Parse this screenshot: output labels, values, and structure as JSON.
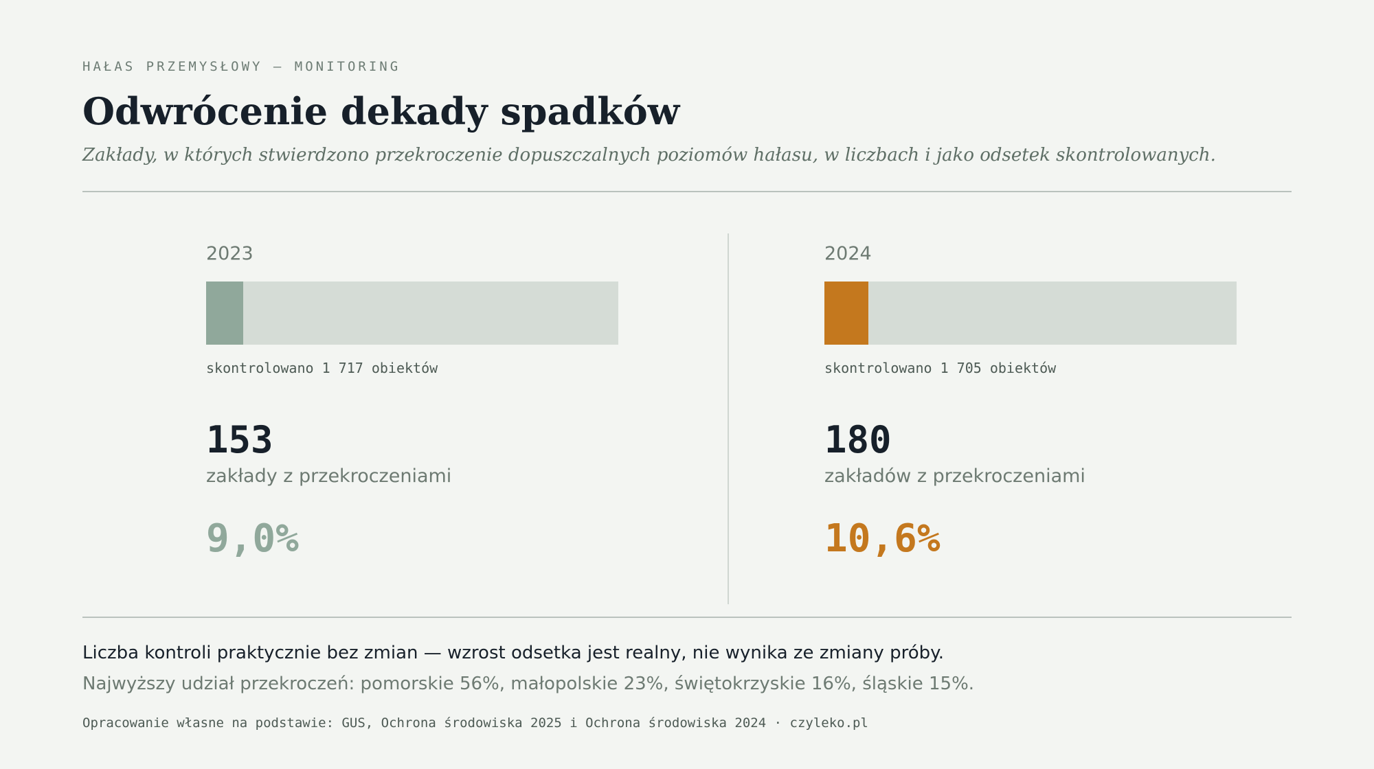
{
  "header": {
    "kicker": "HAŁAS PRZEMYSŁOWY — MONITORING",
    "title": "Odwrócenie dekady spadków",
    "subtitle": "Zakłady, w których stwierdzono przekroczenie dopuszczalnych poziomów hałasu, w liczbach i jako odsetek skontrolowanych."
  },
  "chart_data": {
    "type": "bar",
    "categories": [
      "2023",
      "2024"
    ],
    "values": [
      9.0,
      10.6
    ],
    "unit": "%",
    "ylim": [
      0,
      100
    ],
    "panels": [
      {
        "year": "2023",
        "share": 9.0,
        "share_label": "9,0%",
        "count": "153",
        "count_label": "zakłady z przekroczeniami",
        "inspected_label": "skontrolowano 1 717 obiektów",
        "color": "#90a89b"
      },
      {
        "year": "2024",
        "share": 10.6,
        "share_label": "10,6%",
        "count": "180",
        "count_label": "zakładów z przekroczeniami",
        "inspected_label": "skontrolowano 1 705 obiektów",
        "color": "#c4781e"
      }
    ]
  },
  "colors": {
    "background": "#f3f5f2",
    "bar_track": "#d5dcd6",
    "text_dark": "#17202a",
    "text_muted": "#6d7a72"
  },
  "footer": {
    "note": "Liczba kontroli praktycznie bez zmian — wzrost odsetka jest realny, nie wynika ze zmiany próby.",
    "note2": "Najwyższy udział przekroczeń: pomorskie 56%, małopolskie 23%, świętokrzyskie 16%, śląskie 15%.",
    "source": "Opracowanie własne na podstawie: GUS, Ochrona środowiska 2025 i Ochrona środowiska 2024 · czyleko.pl"
  }
}
